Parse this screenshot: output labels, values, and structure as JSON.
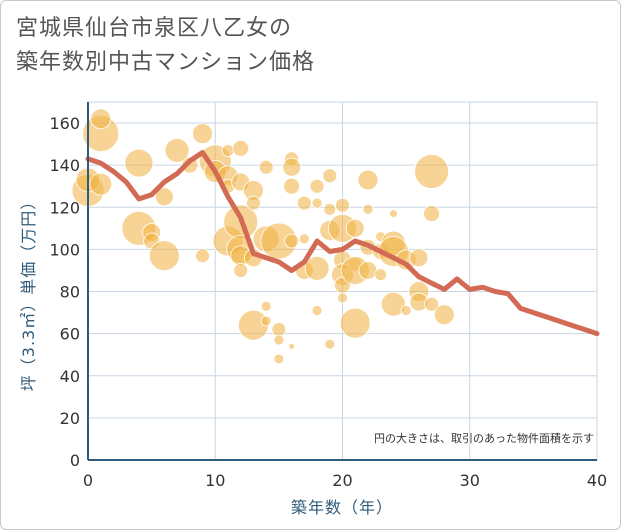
{
  "title_lines": [
    "宮城県仙台市泉区八乙女の",
    "築年数別中古マンション価格"
  ],
  "colors": {
    "bubble": "#f0b040",
    "line": "#d26a54",
    "grid": "#c9d6e3",
    "axis": "#2f5b7c",
    "text": "#333333"
  },
  "chart_data": {
    "type": "scatter",
    "title": "宮城県仙台市泉区八乙女の築年数別中古マンション価格",
    "xlabel": "築年数（年）",
    "ylabel": "坪（3.3㎡）単価（万円）",
    "xlim": [
      0,
      40
    ],
    "ylim": [
      0,
      170
    ],
    "xticks": [
      0,
      10,
      20,
      30,
      40
    ],
    "yticks": [
      0,
      20,
      40,
      60,
      80,
      100,
      120,
      140,
      160
    ],
    "grid": true,
    "note": "円の大きさは、取引のあった物件面積を示す",
    "series": [
      {
        "type": "bubble",
        "points": [
          {
            "x": 0,
            "y": 128,
            "r": 16
          },
          {
            "x": 0,
            "y": 133,
            "r": 12
          },
          {
            "x": 1,
            "y": 155,
            "r": 18
          },
          {
            "x": 1,
            "y": 162,
            "r": 10
          },
          {
            "x": 1,
            "y": 131,
            "r": 11
          },
          {
            "x": 4,
            "y": 141,
            "r": 14
          },
          {
            "x": 4,
            "y": 110,
            "r": 17
          },
          {
            "x": 5,
            "y": 108,
            "r": 9
          },
          {
            "x": 5,
            "y": 104,
            "r": 8
          },
          {
            "x": 6,
            "y": 125,
            "r": 9
          },
          {
            "x": 6,
            "y": 97,
            "r": 15
          },
          {
            "x": 7,
            "y": 147,
            "r": 12
          },
          {
            "x": 8,
            "y": 140,
            "r": 8
          },
          {
            "x": 9,
            "y": 155,
            "r": 10
          },
          {
            "x": 9,
            "y": 97,
            "r": 7
          },
          {
            "x": 10,
            "y": 142,
            "r": 16
          },
          {
            "x": 10,
            "y": 137,
            "r": 11
          },
          {
            "x": 11,
            "y": 147,
            "r": 6
          },
          {
            "x": 11,
            "y": 135,
            "r": 10
          },
          {
            "x": 11,
            "y": 130,
            "r": 7
          },
          {
            "x": 11,
            "y": 104,
            "r": 15
          },
          {
            "x": 12,
            "y": 148,
            "r": 8
          },
          {
            "x": 12,
            "y": 132,
            "r": 9
          },
          {
            "x": 12,
            "y": 113,
            "r": 17
          },
          {
            "x": 12,
            "y": 100,
            "r": 14
          },
          {
            "x": 12,
            "y": 97,
            "r": 10
          },
          {
            "x": 12,
            "y": 90,
            "r": 7
          },
          {
            "x": 13,
            "y": 128,
            "r": 10
          },
          {
            "x": 13,
            "y": 122,
            "r": 7
          },
          {
            "x": 13,
            "y": 96,
            "r": 9
          },
          {
            "x": 13,
            "y": 64,
            "r": 15
          },
          {
            "x": 14,
            "y": 139,
            "r": 7
          },
          {
            "x": 14,
            "y": 105,
            "r": 13
          },
          {
            "x": 14,
            "y": 73,
            "r": 5
          },
          {
            "x": 14,
            "y": 66,
            "r": 5
          },
          {
            "x": 15,
            "y": 104,
            "r": 18
          },
          {
            "x": 15,
            "y": 62,
            "r": 7
          },
          {
            "x": 15,
            "y": 57,
            "r": 5
          },
          {
            "x": 15,
            "y": 48,
            "r": 5
          },
          {
            "x": 16,
            "y": 143,
            "r": 7
          },
          {
            "x": 16,
            "y": 139,
            "r": 9
          },
          {
            "x": 16,
            "y": 130,
            "r": 8
          },
          {
            "x": 16,
            "y": 104,
            "r": 7
          },
          {
            "x": 16,
            "y": 54,
            "r": 3
          },
          {
            "x": 17,
            "y": 122,
            "r": 7
          },
          {
            "x": 17,
            "y": 105,
            "r": 5
          },
          {
            "x": 17,
            "y": 90,
            "r": 9
          },
          {
            "x": 18,
            "y": 130,
            "r": 7
          },
          {
            "x": 18,
            "y": 122,
            "r": 5
          },
          {
            "x": 18,
            "y": 91,
            "r": 12
          },
          {
            "x": 18,
            "y": 71,
            "r": 5
          },
          {
            "x": 19,
            "y": 135,
            "r": 7
          },
          {
            "x": 19,
            "y": 119,
            "r": 6
          },
          {
            "x": 19,
            "y": 109,
            "r": 10
          },
          {
            "x": 19,
            "y": 55,
            "r": 5
          },
          {
            "x": 20,
            "y": 121,
            "r": 7
          },
          {
            "x": 20,
            "y": 110,
            "r": 14
          },
          {
            "x": 20,
            "y": 95,
            "r": 9
          },
          {
            "x": 20,
            "y": 88,
            "r": 11
          },
          {
            "x": 20,
            "y": 83,
            "r": 8
          },
          {
            "x": 20,
            "y": 77,
            "r": 5
          },
          {
            "x": 21,
            "y": 110,
            "r": 9
          },
          {
            "x": 21,
            "y": 93,
            "r": 7
          },
          {
            "x": 21,
            "y": 90,
            "r": 14
          },
          {
            "x": 21,
            "y": 65,
            "r": 15
          },
          {
            "x": 22,
            "y": 133,
            "r": 10
          },
          {
            "x": 22,
            "y": 119,
            "r": 5
          },
          {
            "x": 22,
            "y": 101,
            "r": 8
          },
          {
            "x": 22,
            "y": 90,
            "r": 9
          },
          {
            "x": 23,
            "y": 106,
            "r": 5
          },
          {
            "x": 23,
            "y": 99,
            "r": 8
          },
          {
            "x": 23,
            "y": 88,
            "r": 6
          },
          {
            "x": 24,
            "y": 117,
            "r": 4
          },
          {
            "x": 24,
            "y": 103,
            "r": 12
          },
          {
            "x": 24,
            "y": 99,
            "r": 15
          },
          {
            "x": 24,
            "y": 74,
            "r": 12
          },
          {
            "x": 25,
            "y": 95,
            "r": 10
          },
          {
            "x": 25,
            "y": 71,
            "r": 5
          },
          {
            "x": 26,
            "y": 96,
            "r": 9
          },
          {
            "x": 26,
            "y": 80,
            "r": 10
          },
          {
            "x": 26,
            "y": 75,
            "r": 9
          },
          {
            "x": 27,
            "y": 137,
            "r": 17
          },
          {
            "x": 27,
            "y": 117,
            "r": 8
          },
          {
            "x": 27,
            "y": 74,
            "r": 7
          },
          {
            "x": 28,
            "y": 69,
            "r": 10
          }
        ]
      },
      {
        "type": "line",
        "x": [
          0,
          1,
          2,
          3,
          4,
          5,
          6,
          7,
          8,
          9,
          10,
          11,
          12,
          13,
          14,
          15,
          16,
          17,
          18,
          19,
          20,
          21,
          22,
          23,
          24,
          25,
          26,
          27,
          28,
          29,
          30,
          31,
          32,
          33,
          34,
          35,
          36,
          37,
          38,
          39,
          40
        ],
        "y": [
          143,
          141,
          137,
          132,
          124,
          126,
          132,
          136,
          142,
          146,
          137,
          125,
          115,
          98,
          96,
          94,
          90,
          94,
          104,
          99,
          100,
          104,
          102,
          99,
          96,
          93,
          87,
          84,
          81,
          86,
          81,
          82,
          80,
          79,
          72,
          70,
          68,
          66,
          64,
          62,
          60
        ]
      }
    ]
  }
}
